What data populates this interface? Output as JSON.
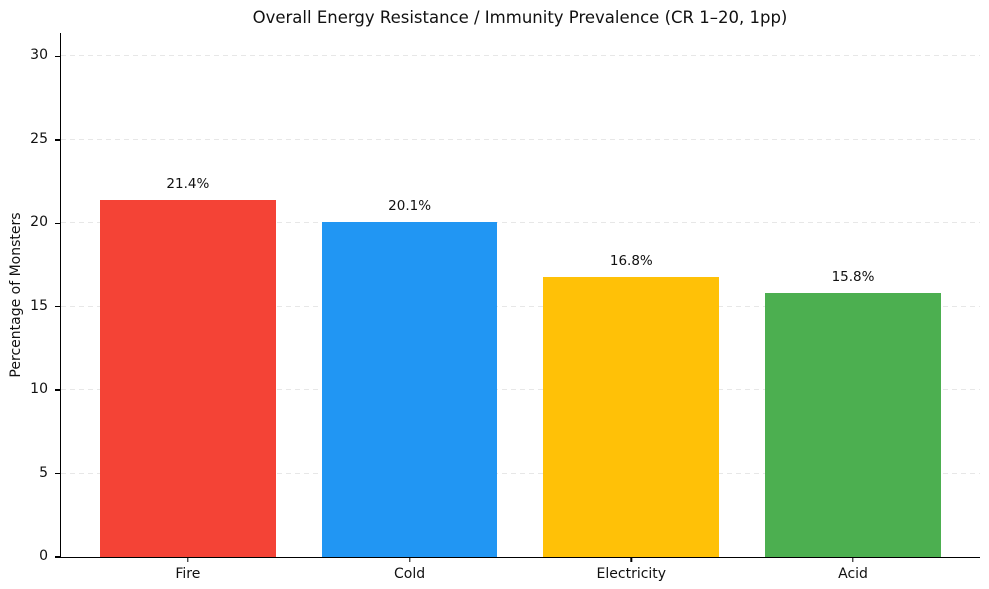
{
  "chart_data": {
    "type": "bar",
    "title": "Overall Energy Resistance / Immunity Prevalence (CR 1–20, 1pp)",
    "xlabel": "",
    "ylabel": "Percentage of Monsters",
    "categories": [
      "Fire",
      "Cold",
      "Electricity",
      "Acid"
    ],
    "values": [
      21.4,
      20.1,
      16.8,
      15.8
    ],
    "value_labels": [
      "21.4%",
      "20.1%",
      "16.8%",
      "15.8%"
    ],
    "bar_colors": [
      "#f44336",
      "#2196f3",
      "#ffc107",
      "#4caf50"
    ],
    "yticks": [
      0,
      5,
      10,
      15,
      20,
      25,
      30
    ],
    "ylim": [
      0,
      31.4
    ],
    "grid": "horizontal-dashed",
    "grid_color": "#e7e7e7",
    "legend": "none",
    "background_color": "#ffffff"
  }
}
